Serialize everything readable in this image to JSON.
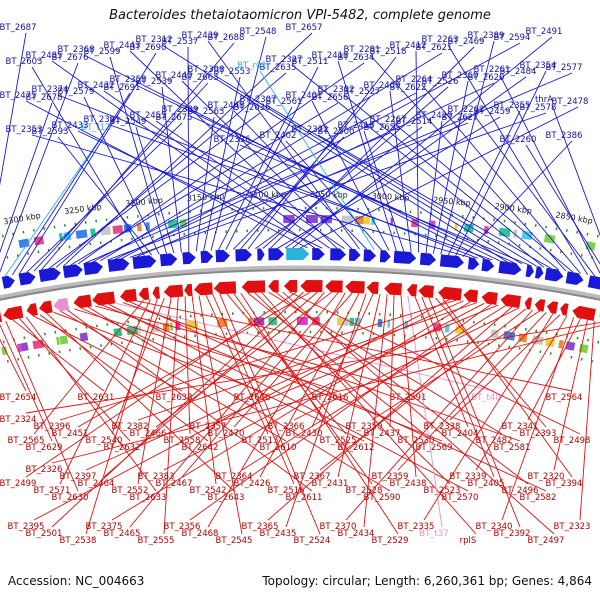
{
  "title": "Bacteroides thetaiotaomicron VPI-5482, complete genome",
  "footer": {
    "accession": "Accession: NC_004663",
    "topology": "Topology: circular; Length: 6,260,361 bp; Genes: 4,864"
  },
  "colors": {
    "plus_strand": "#1a1ad6",
    "minus_strand": "#e01010",
    "rna_plus": "#28b4d8",
    "rna_minus": "#e890d0",
    "backbone": "#888888",
    "ticks": "#2a8a2a"
  },
  "ruler": [
    {
      "label": "3300 kbp"
    },
    {
      "label": "3250 kbp"
    },
    {
      "label": "3200 kbp"
    },
    {
      "label": "3150 kbp"
    },
    {
      "label": "3100 kbp"
    },
    {
      "label": "3050 kbp"
    },
    {
      "label": "3000 kbp"
    },
    {
      "label": "2950 kbp"
    },
    {
      "label": "2900 kbp"
    },
    {
      "label": "2850 kbp"
    }
  ],
  "top_labels": [
    {
      "text": "BT_2687",
      "rna": false
    },
    {
      "text": "BT_2678",
      "rna": false
    },
    {
      "text": "BT_2676",
      "rna": false
    },
    {
      "text": "BT_t12",
      "rna": true
    },
    {
      "text": "BT_2691",
      "rna": false
    },
    {
      "text": "BT_2690",
      "rna": false
    },
    {
      "text": "BT_2675",
      "rna": false
    },
    {
      "text": "BT_2663",
      "rna": false
    },
    {
      "text": "BT_2688",
      "rna": false
    },
    {
      "text": "BT_2636",
      "rna": false
    },
    {
      "text": "BT_2635",
      "rna": false
    },
    {
      "text": "BT_2657",
      "rna": false
    },
    {
      "text": "BT_2656",
      "rna": false
    },
    {
      "text": "BT_2634",
      "rna": false
    },
    {
      "text": "BT_2655",
      "rna": false
    },
    {
      "text": "BT_2622",
      "rna": false
    },
    {
      "text": "BT_2621",
      "rna": false
    },
    {
      "text": "BT_2627",
      "rna": false
    },
    {
      "text": "BT_2620",
      "rna": false
    },
    {
      "text": "BT_2594",
      "rna": false
    },
    {
      "text": "BT_2578",
      "rna": false
    },
    {
      "text": "BT_2577",
      "rna": false
    },
    {
      "text": "BT_2603",
      "rna": false
    },
    {
      "text": "BT_2593",
      "rna": false
    },
    {
      "text": "BT_2579",
      "rna": false
    },
    {
      "text": "BT_2599",
      "rna": false
    },
    {
      "text": "BT_2549",
      "rna": false
    },
    {
      "text": "BT_2539",
      "rna": false
    },
    {
      "text": "BT_2537",
      "rna": false
    },
    {
      "text": "BT_2563",
      "rna": false
    },
    {
      "text": "BT_2553",
      "rna": false
    },
    {
      "text": "BT_2548",
      "rna": false
    },
    {
      "text": "BT_2561",
      "rna": false
    },
    {
      "text": "BT_2511",
      "rna": false
    },
    {
      "text": "BT_2500",
      "rna": false
    },
    {
      "text": "BT_2527",
      "rna": false
    },
    {
      "text": "BT_2518",
      "rna": false
    },
    {
      "text": "BT_2514",
      "rna": false
    },
    {
      "text": "BT_2526",
      "rna": false
    },
    {
      "text": "BT_2469",
      "rna": false
    },
    {
      "text": "BT_2459",
      "rna": false
    },
    {
      "text": "BT_2484",
      "rna": false
    },
    {
      "text": "BT_2491",
      "rna": false
    },
    {
      "text": "BT_2478",
      "rna": false
    },
    {
      "text": "BT_2475",
      "rna": false
    },
    {
      "text": "BT_2485",
      "rna": false
    },
    {
      "text": "BT_2433",
      "rna": false
    },
    {
      "text": "BT_2432",
      "rna": false
    },
    {
      "text": "BT_2443",
      "rna": false
    },
    {
      "text": "BT_2455",
      "rna": false
    },
    {
      "text": "BT_2440",
      "rna": false
    },
    {
      "text": "BT_2439",
      "rna": false
    },
    {
      "text": "BT_2448",
      "rna": false
    },
    {
      "text": "BT_r01",
      "rna": true
    },
    {
      "text": "BT_2402",
      "rna": false
    },
    {
      "text": "BT_2401",
      "rna": false
    },
    {
      "text": "BT_2418",
      "rna": false
    },
    {
      "text": "BT_2416",
      "rna": false
    },
    {
      "text": "BT_2400",
      "rna": false
    },
    {
      "text": "BT_2412",
      "rna": false
    },
    {
      "text": "BT_2420",
      "rna": false
    },
    {
      "text": "BT_2360",
      "rna": false
    },
    {
      "text": "BT_2389",
      "rna": false
    },
    {
      "text": "BT_2355",
      "rna": false
    },
    {
      "text": "BT_2354",
      "rna": false
    },
    {
      "text": "BT_2386",
      "rna": false
    },
    {
      "text": "BT_2353",
      "rna": false
    },
    {
      "text": "BT_2374",
      "rna": false
    },
    {
      "text": "BT_2368",
      "rna": false
    },
    {
      "text": "BT_2391",
      "rna": false
    },
    {
      "text": "BT_2358",
      "rna": false
    },
    {
      "text": "BT_2312",
      "rna": false
    },
    {
      "text": "BT_2309",
      "rna": false
    },
    {
      "text": "BT_2308",
      "rna": false
    },
    {
      "text": "BT_2336",
      "rna": false
    },
    {
      "text": "BT_2307",
      "rna": false
    },
    {
      "text": "BT_2327",
      "rna": false
    },
    {
      "text": "BT_2322",
      "rna": false
    },
    {
      "text": "BT_2302",
      "rna": false
    },
    {
      "text": "BT_2281",
      "rna": false
    },
    {
      "text": "BT_2267",
      "rna": false
    },
    {
      "text": "BT_2264",
      "rna": false
    },
    {
      "text": "BT_2263",
      "rna": false
    },
    {
      "text": "BT_2262",
      "rna": false
    },
    {
      "text": "BT_2261",
      "rna": false
    },
    {
      "text": "BT_2260",
      "rna": false
    },
    {
      "text": "thrA",
      "rna": false
    }
  ],
  "bottom_labels": [
    {
      "text": "BT_2654",
      "rna": false
    },
    {
      "text": "BT_2629",
      "rna": false
    },
    {
      "text": "BT_2630",
      "rna": false
    },
    {
      "text": "BT_2631",
      "rna": false
    },
    {
      "text": "BT_2632",
      "rna": false
    },
    {
      "text": "BT_2633",
      "rna": false
    },
    {
      "text": "BT_2638",
      "rna": false
    },
    {
      "text": "BT_2642",
      "rna": false
    },
    {
      "text": "BT_2643",
      "rna": false
    },
    {
      "text": "BT_2606",
      "rna": false
    },
    {
      "text": "BT_2610",
      "rna": false
    },
    {
      "text": "BT_2611",
      "rna": false
    },
    {
      "text": "BT_2616",
      "rna": false
    },
    {
      "text": "BT_2612",
      "rna": false
    },
    {
      "text": "BT_2590",
      "rna": false
    },
    {
      "text": "BT_2591",
      "rna": false
    },
    {
      "text": "BT_2569",
      "rna": false
    },
    {
      "text": "BT_2570",
      "rna": false
    },
    {
      "text": "BT_t40",
      "rna": true
    },
    {
      "text": "BT_2581",
      "rna": false
    },
    {
      "text": "BT_2582",
      "rna": false
    },
    {
      "text": "BT_2564",
      "rna": false
    },
    {
      "text": "BT_2565",
      "rna": false
    },
    {
      "text": "BT_2571",
      "rna": false
    },
    {
      "text": "BT_2538",
      "rna": false
    },
    {
      "text": "BT_2540",
      "rna": false
    },
    {
      "text": "BT_2552",
      "rna": false
    },
    {
      "text": "BT_2555",
      "rna": false
    },
    {
      "text": "BT_2558",
      "rna": false
    },
    {
      "text": "BT_2542",
      "rna": false
    },
    {
      "text": "BT_2545",
      "rna": false
    },
    {
      "text": "BT_2513",
      "rna": false
    },
    {
      "text": "BT_2516",
      "rna": false
    },
    {
      "text": "BT_2524",
      "rna": false
    },
    {
      "text": "BT_2525",
      "rna": false
    },
    {
      "text": "BT_2528",
      "rna": false
    },
    {
      "text": "BT_2529",
      "rna": false
    },
    {
      "text": "BT_2530",
      "rna": false
    },
    {
      "text": "BT_2523",
      "rna": false
    },
    {
      "text": "rplS",
      "rna": false
    },
    {
      "text": "BT_2482",
      "rna": false
    },
    {
      "text": "BT_2496",
      "rna": false
    },
    {
      "text": "BT_2497",
      "rna": false
    },
    {
      "text": "BT_2498",
      "rna": false
    },
    {
      "text": "BT_2499",
      "rna": false
    },
    {
      "text": "BT_2501",
      "rna": false
    },
    {
      "text": "BT_2451",
      "rna": false
    },
    {
      "text": "BT_2464",
      "rna": false
    },
    {
      "text": "BT_2465",
      "rna": false
    },
    {
      "text": "BT_2466",
      "rna": false
    },
    {
      "text": "BT_2467",
      "rna": false
    },
    {
      "text": "BT_2468",
      "rna": false
    },
    {
      "text": "BT_2470",
      "rna": false
    },
    {
      "text": "BT_2426",
      "rna": false
    },
    {
      "text": "BT_2435",
      "rna": false
    },
    {
      "text": "BT_2430",
      "rna": false
    },
    {
      "text": "BT_2431",
      "rna": false
    },
    {
      "text": "BT_2434",
      "rna": false
    },
    {
      "text": "BT_2437",
      "rna": false
    },
    {
      "text": "BT_2438",
      "rna": false
    },
    {
      "text": "BT_t37",
      "rna": true
    },
    {
      "text": "BT_2404",
      "rna": false
    },
    {
      "text": "BT_2405",
      "rna": false
    },
    {
      "text": "BT_2392",
      "rna": false
    },
    {
      "text": "BT_2393",
      "rna": false
    },
    {
      "text": "BT_2394",
      "rna": false
    },
    {
      "text": "BT_2395",
      "rna": false
    },
    {
      "text": "BT_2396",
      "rna": false
    },
    {
      "text": "BT_2397",
      "rna": false
    },
    {
      "text": "BT_2375",
      "rna": false
    },
    {
      "text": "BT_2382",
      "rna": false
    },
    {
      "text": "BT_2383",
      "rna": false
    },
    {
      "text": "BT_2356",
      "rna": false
    },
    {
      "text": "BT_2357",
      "rna": false
    },
    {
      "text": "BT_2364",
      "rna": false
    },
    {
      "text": "BT_2365",
      "rna": false
    },
    {
      "text": "BT_2366",
      "rna": false
    },
    {
      "text": "BT_2367",
      "rna": false
    },
    {
      "text": "BT_2370",
      "rna": false
    },
    {
      "text": "BT_2350",
      "rna": false
    },
    {
      "text": "BT_2359",
      "rna": false
    },
    {
      "text": "BT_2335",
      "rna": false
    },
    {
      "text": "BT_2338",
      "rna": false
    },
    {
      "text": "BT_2339",
      "rna": false
    },
    {
      "text": "BT_2340",
      "rna": false
    },
    {
      "text": "BT_2341",
      "rna": false
    },
    {
      "text": "BT_2320",
      "rna": false
    },
    {
      "text": "BT_2323",
      "rna": false
    },
    {
      "text": "BT_2324",
      "rna": false
    },
    {
      "text": "BT_2326",
      "rna": false
    }
  ]
}
